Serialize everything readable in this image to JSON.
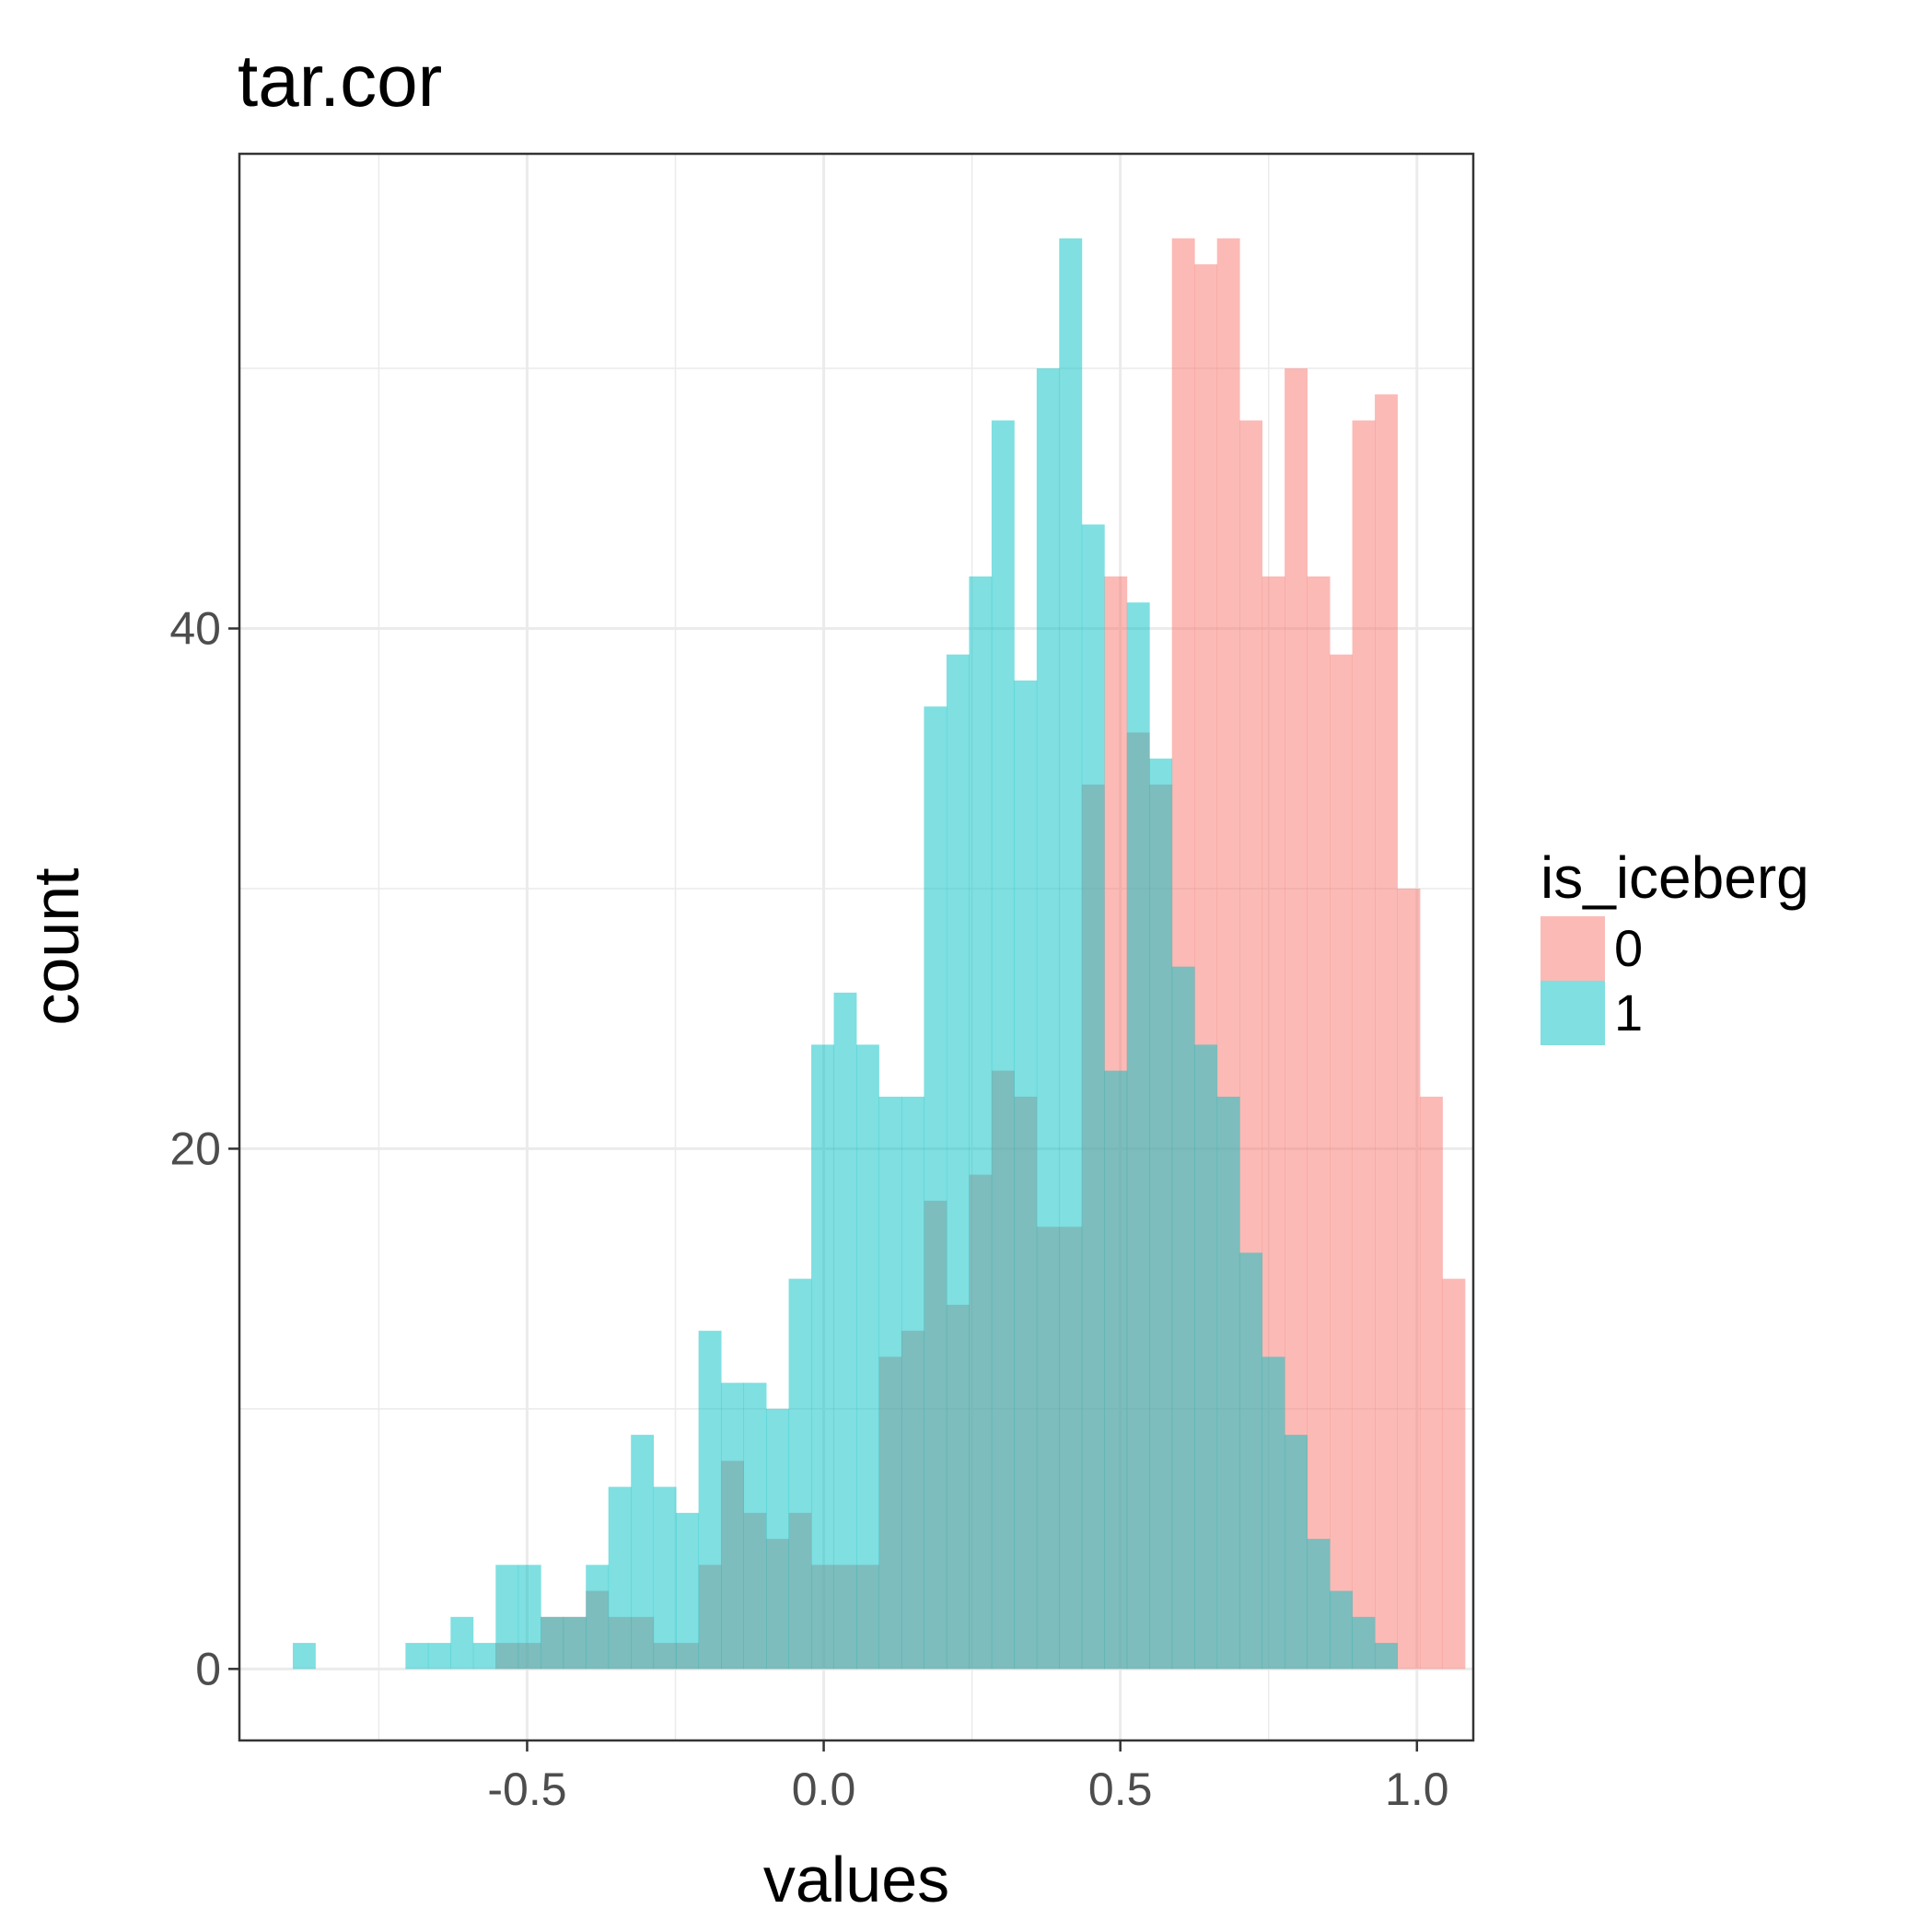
{
  "chart_data": {
    "type": "histogram",
    "title": "tar.cor",
    "xlabel": "values",
    "ylabel": "count",
    "xlim": [
      -0.985,
      1.095
    ],
    "ylim": [
      -2.75,
      58.25
    ],
    "x_ticks": [
      -0.5,
      0.0,
      0.5,
      1.0
    ],
    "x_tick_labels": [
      "-0.5",
      "0.0",
      "0.5",
      "1.0"
    ],
    "y_ticks": [
      0,
      20,
      40
    ],
    "y_tick_labels": [
      "0",
      "20",
      "40"
    ],
    "bin_start": -0.895,
    "bin_width": 0.038,
    "grid": true,
    "legend": {
      "title": "is_iceberg",
      "position": "right",
      "entries": [
        {
          "label": "0",
          "color": "#F8766D"
        },
        {
          "label": "1",
          "color": "#00BFC4"
        }
      ]
    },
    "series": [
      {
        "name": "0",
        "color": "#F8766D",
        "counts": [
          0,
          0,
          0,
          0,
          0,
          0,
          0,
          0,
          0,
          1,
          1,
          2,
          2,
          3,
          2,
          2,
          1,
          1,
          4,
          8,
          6,
          5,
          6,
          4,
          4,
          4,
          12,
          13,
          18,
          14,
          19,
          23,
          22,
          17,
          17,
          34,
          42,
          36,
          34,
          55,
          54,
          55,
          48,
          42,
          50,
          42,
          39,
          48,
          49,
          30,
          22,
          15
        ]
      },
      {
        "name": "1",
        "color": "#00BFC4",
        "counts": [
          1,
          0,
          0,
          0,
          0,
          1,
          1,
          2,
          1,
          4,
          4,
          2,
          2,
          4,
          7,
          9,
          7,
          6,
          13,
          11,
          11,
          10,
          15,
          24,
          26,
          24,
          22,
          22,
          37,
          39,
          42,
          48,
          38,
          50,
          55,
          44,
          23,
          41,
          35,
          27,
          24,
          22,
          16,
          12,
          9,
          5,
          3,
          2,
          1,
          0,
          0,
          0
        ]
      }
    ]
  }
}
